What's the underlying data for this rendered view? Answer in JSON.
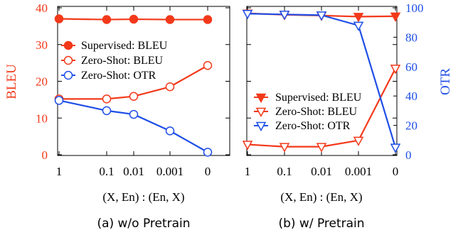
{
  "chart_data": [
    {
      "type": "line",
      "caption": "(a) w/o Pretrain",
      "xlabel": "(X, En) : (En, X)",
      "categories": [
        "1",
        "0.1",
        "0.01",
        "0.001",
        "0"
      ],
      "left_axis": {
        "label": "BLEU",
        "ylim": [
          0,
          40
        ],
        "ticks": [
          "0",
          "10",
          "20",
          "30",
          "40"
        ],
        "color": "#f2391a"
      },
      "legend_position": "center-left",
      "series": [
        {
          "name": "Supervised: BLEU",
          "axis": "left",
          "color": "#f2391a",
          "marker": "filled-circle",
          "values": [
            37.0,
            36.8,
            36.9,
            36.8,
            36.8
          ]
        },
        {
          "name": "Zero-Shot: BLEU",
          "axis": "left",
          "color": "#f2391a",
          "marker": "open-circle",
          "values": [
            15.2,
            15.2,
            15.9,
            18.5,
            24.3
          ]
        },
        {
          "name": "Zero-Shot: OTR",
          "axis": "left",
          "color": "#1f4fe6",
          "marker": "open-circle",
          "values": [
            14.8,
            12.0,
            11.0,
            6.5,
            0.7
          ]
        }
      ]
    },
    {
      "type": "line",
      "caption": "(b) w/ Pretrain",
      "xlabel": "(X, En) : (En, X)",
      "categories": [
        "1",
        "0.1",
        "0.01",
        "0.001",
        "0"
      ],
      "left_axis": {
        "label": "",
        "ylim": [
          0,
          40
        ],
        "ticks": []
      },
      "right_axis": {
        "label": "OTR",
        "ylim": [
          0,
          100
        ],
        "ticks": [
          "0",
          "20",
          "40",
          "60",
          "80",
          "100"
        ],
        "color": "#1f4fe6"
      },
      "legend_position": "center-left",
      "series": [
        {
          "name": "Supervised: BLEU",
          "axis": "left",
          "color": "#f2391a",
          "marker": "filled-triangle-down",
          "values": [
            38.5,
            38.1,
            37.9,
            37.6,
            37.7
          ]
        },
        {
          "name": "Zero-Shot: BLEU",
          "axis": "left",
          "color": "#f2391a",
          "marker": "open-triangle-down",
          "values": [
            2.8,
            2.2,
            2.2,
            3.9,
            23.5
          ]
        },
        {
          "name": "Zero-Shot: OTR",
          "axis": "right",
          "color": "#1f4fe6",
          "marker": "open-triangle-down",
          "values": [
            96,
            95.5,
            95,
            88,
            5
          ]
        }
      ]
    }
  ]
}
